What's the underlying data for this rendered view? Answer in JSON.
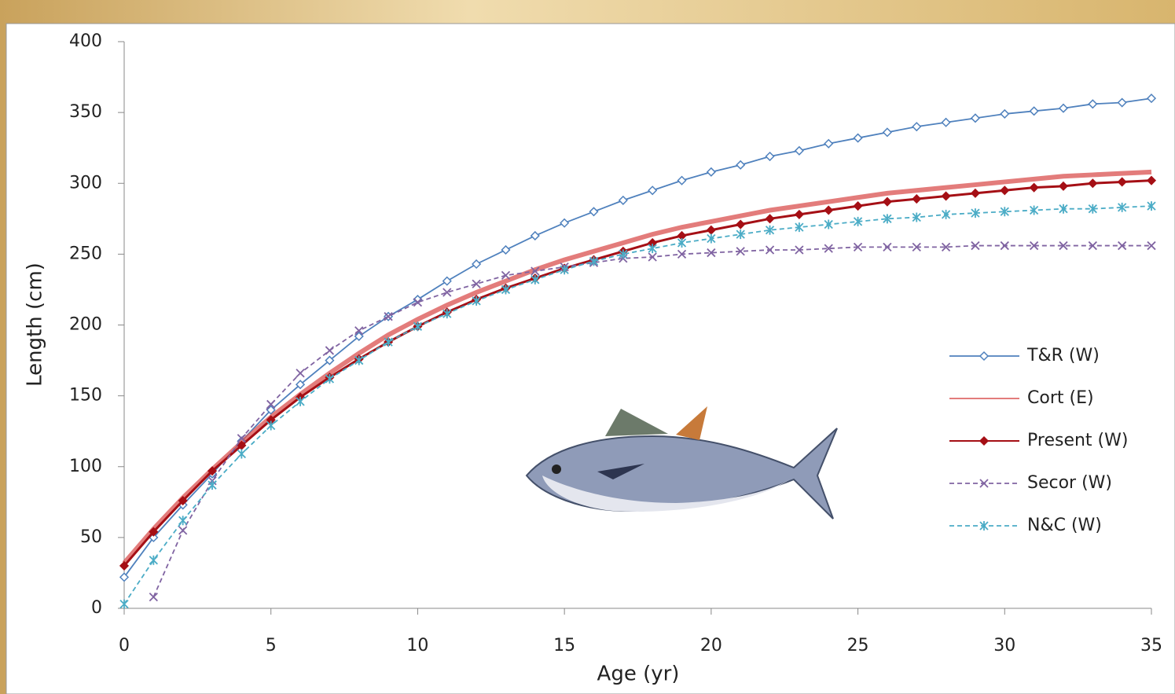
{
  "chart_data": {
    "type": "line",
    "xlabel": "Age (yr)",
    "ylabel": "Length (cm)",
    "x": [
      0,
      1,
      2,
      3,
      4,
      5,
      6,
      7,
      8,
      9,
      10,
      11,
      12,
      13,
      14,
      15,
      16,
      17,
      18,
      19,
      20,
      21,
      22,
      23,
      24,
      25,
      26,
      27,
      28,
      29,
      30,
      31,
      32,
      33,
      34,
      35
    ],
    "xlim": [
      0,
      35
    ],
    "xticks": [
      0,
      5,
      10,
      15,
      20,
      25,
      30,
      35
    ],
    "ylim": [
      0,
      400
    ],
    "yticks": [
      0,
      50,
      100,
      150,
      200,
      250,
      300,
      350,
      400
    ],
    "legend": "right",
    "series": [
      {
        "name": "T&R (W)",
        "color": "#4f81bd",
        "marker": "diamond-open",
        "dashed": false,
        "values": [
          22,
          50,
          73,
          95,
          118,
          140,
          158,
          175,
          192,
          206,
          218,
          231,
          243,
          253,
          263,
          272,
          280,
          288,
          295,
          302,
          308,
          313,
          319,
          323,
          328,
          332,
          336,
          340,
          343,
          346,
          349,
          351,
          353,
          356,
          357,
          360
        ]
      },
      {
        "name": "Cort (E)",
        "color": "#d9504f",
        "marker": "none",
        "dashed": false,
        "values": [
          32,
          56,
          78,
          98,
          117,
          135,
          151,
          166,
          180,
          193,
          204,
          214,
          223,
          231,
          239,
          246,
          252,
          258,
          264,
          269,
          273,
          277,
          281,
          284,
          287,
          290,
          293,
          295,
          297,
          299,
          301,
          303,
          305,
          306,
          307,
          308
        ]
      },
      {
        "name": "Present (W)",
        "color": "#a50f15",
        "marker": "diamond",
        "dashed": false,
        "values": [
          30,
          54,
          76,
          97,
          115,
          133,
          149,
          163,
          176,
          188,
          199,
          209,
          218,
          226,
          233,
          240,
          246,
          252,
          258,
          263,
          267,
          271,
          275,
          278,
          281,
          284,
          287,
          289,
          291,
          293,
          295,
          297,
          298,
          300,
          301,
          302
        ]
      },
      {
        "name": "Secor (W)",
        "color": "#8064a2",
        "marker": "x",
        "dashed": true,
        "values": [
          null,
          8,
          55,
          90,
          120,
          144,
          166,
          182,
          196,
          206,
          216,
          223,
          229,
          235,
          238,
          241,
          244,
          247,
          248,
          250,
          251,
          252,
          253,
          253,
          254,
          255,
          255,
          255,
          255,
          256,
          256,
          256,
          256,
          256,
          256,
          256
        ]
      },
      {
        "name": "N&C (W)",
        "color": "#4bacc6",
        "marker": "star",
        "dashed": true,
        "values": [
          3,
          34,
          62,
          87,
          109,
          129,
          146,
          162,
          175,
          188,
          199,
          208,
          217,
          225,
          232,
          239,
          245,
          250,
          254,
          258,
          261,
          264,
          267,
          269,
          271,
          273,
          275,
          276,
          278,
          279,
          280,
          281,
          282,
          282,
          283,
          284
        ]
      }
    ]
  }
}
